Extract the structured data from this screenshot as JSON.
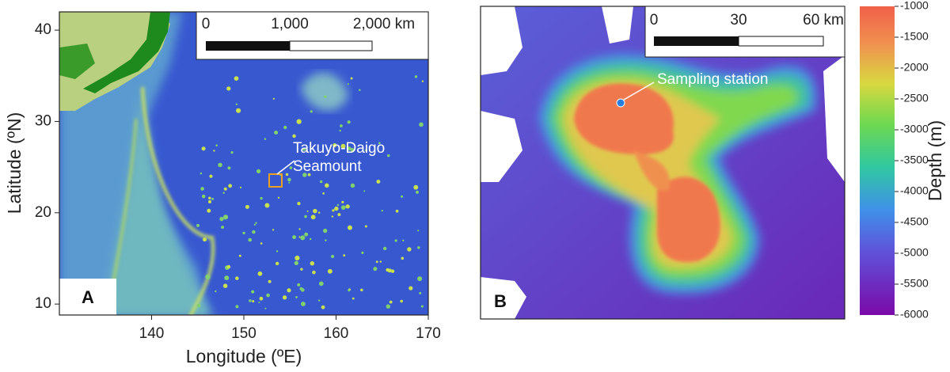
{
  "panel_a": {
    "label": "A",
    "x_axis_label": "Longitude (ºE)",
    "y_axis_label": "Latitude (ºN)",
    "xlim": [
      130,
      170
    ],
    "ylim": [
      8.8,
      42
    ],
    "xticks": [
      140,
      150,
      160,
      170
    ],
    "yticks": [
      10,
      20,
      30,
      40
    ],
    "annotation": [
      "Takuyo-Daigo",
      "Seamount"
    ],
    "scale_bar": [
      "0",
      "1,000",
      "2,000 km"
    ]
  },
  "panel_b": {
    "label": "B",
    "annotation": "Sampling station",
    "scale_bar": [
      "0",
      "30",
      "60 km"
    ]
  },
  "colorbar": {
    "title": "Depth (m)",
    "lim": [
      -6000,
      -1000
    ],
    "ticks": [
      -1000,
      -1500,
      -2000,
      -2500,
      -3000,
      -3500,
      -4000,
      -4500,
      -5000,
      -5500,
      -6000
    ]
  }
}
